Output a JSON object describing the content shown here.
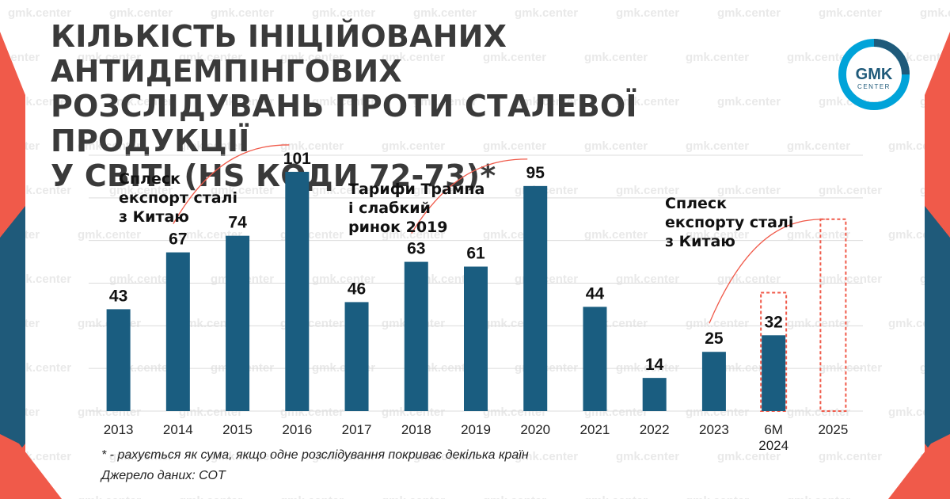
{
  "title_lines": [
    "КІЛЬКІСТЬ ІНІЦІЙОВАНИХ АНТИДЕМПІНГОВИХ",
    "РОЗСЛІДУВАНЬ ПРОТИ СТАЛЕВОЇ ПРОДУКЦІЇ",
    "У СВІТІ (HS КОДИ 72-73)*"
  ],
  "logo": {
    "line1": "GMK",
    "line2": "CENTER"
  },
  "watermark": "gmk.center",
  "colors": {
    "bar": "#1a5d80",
    "highlight": "#f05a4a",
    "title": "#3a3a3a",
    "grid": "#dcdcdc",
    "accent_blue": "#1f5a7a",
    "logo_ring": "#00a3d9"
  },
  "chart_data": {
    "type": "bar",
    "categories": [
      "2013",
      "2014",
      "2015",
      "2016",
      "2017",
      "2018",
      "2019",
      "2020",
      "2021",
      "2022",
      "2023",
      "6М\n2024",
      "2025"
    ],
    "values": [
      43,
      67,
      74,
      101,
      46,
      63,
      61,
      95,
      44,
      14,
      25,
      32,
      null
    ],
    "data_labels": [
      "43",
      "67",
      "74",
      "101",
      "46",
      "63",
      "61",
      "95",
      "44",
      "14",
      "25",
      "32",
      ""
    ],
    "projection": [
      {
        "category_index": 11,
        "value": 50,
        "style": "dashed-outline"
      },
      {
        "category_index": 12,
        "value": 81,
        "style": "dashed-outline"
      }
    ],
    "ylim": [
      0,
      110
    ],
    "grid": true,
    "annotations": [
      {
        "text": [
          "Сплеск",
          "експорт сталі",
          "з Китаю"
        ],
        "from_index": 1,
        "to_index": 3
      },
      {
        "text": [
          "Тарифи Трампа",
          "і слабкий",
          "ринок 2019"
        ],
        "from_index": 5,
        "to_index": 7
      },
      {
        "text": [
          "Сплеск",
          "експорту сталі",
          "з Китаю"
        ],
        "from_index": 10,
        "to_index": 12
      }
    ]
  },
  "notes": {
    "footnote": "* - рахується як сума, якщо одне розслідування покриває декілька країн",
    "source": "Джерело даних: СОТ"
  }
}
